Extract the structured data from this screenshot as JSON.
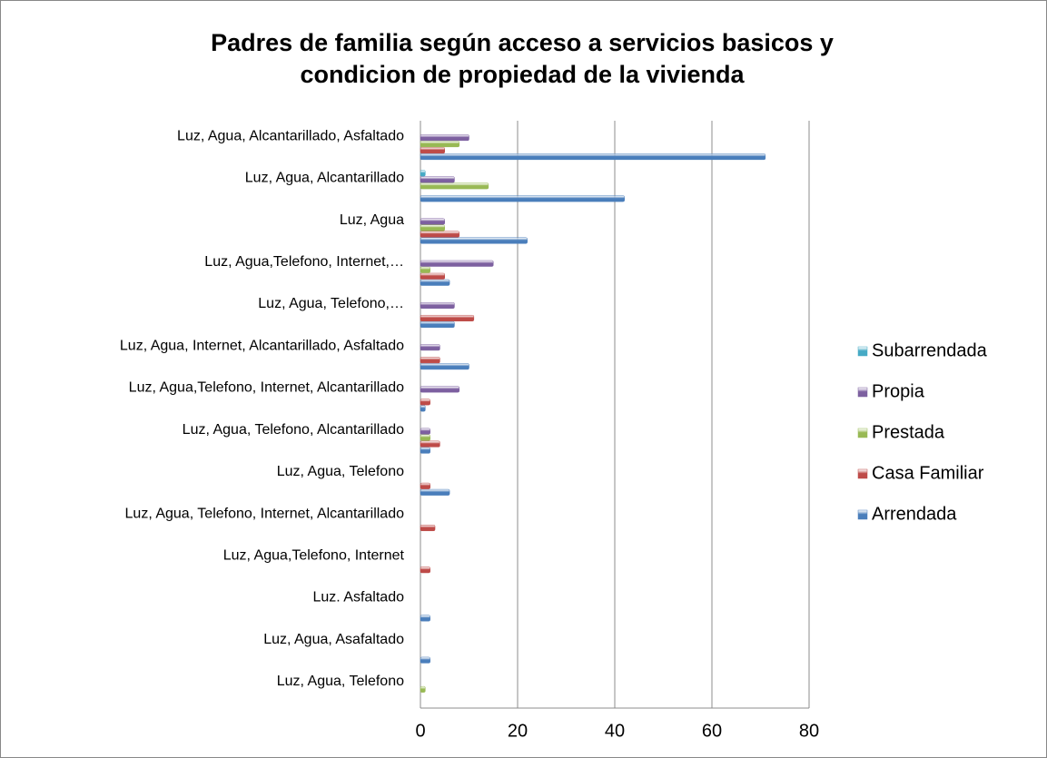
{
  "chart_data": {
    "type": "bar",
    "orientation": "horizontal",
    "title": "Padres de familia según acceso a servicios basicos y condicion de propiedad de la vivienda",
    "categories": [
      "Luz, Agua, Alcantarillado, Asfaltado",
      "Luz, Agua, Alcantarillado",
      "Luz, Agua",
      "Luz, Agua,Telefono, Internet,…",
      "Luz, Agua, Telefono,…",
      "Luz, Agua, Internet, Alcantarillado, Asfaltado",
      "Luz, Agua,Telefono, Internet, Alcantarillado",
      "Luz, Agua, Telefono, Alcantarillado",
      "Luz, Agua, Telefono",
      "Luz, Agua, Telefono, Internet, Alcantarillado",
      "Luz, Agua,Telefono, Internet",
      "Luz. Asfaltado",
      "Luz, Agua, Asafaltado",
      "Luz, Agua, Telefono"
    ],
    "series": [
      {
        "name": "Arrendada",
        "color": "#4a7ebb",
        "values": [
          71,
          42,
          22,
          6,
          7,
          10,
          1,
          2,
          6,
          0,
          0,
          2,
          2,
          0
        ]
      },
      {
        "name": "Casa Familiar",
        "color": "#be4b48",
        "values": [
          5,
          0,
          8,
          5,
          11,
          4,
          2,
          4,
          2,
          3,
          2,
          0,
          0,
          0
        ]
      },
      {
        "name": "Prestada",
        "color": "#98b954",
        "values": [
          8,
          14,
          5,
          2,
          0,
          0,
          0,
          2,
          0,
          0,
          0,
          0,
          0,
          1
        ]
      },
      {
        "name": "Propia",
        "color": "#7d60a0",
        "values": [
          10,
          7,
          5,
          15,
          7,
          4,
          8,
          2,
          0,
          0,
          0,
          0,
          0,
          0
        ]
      },
      {
        "name": "Subarrendada",
        "color": "#46aac5",
        "values": [
          0,
          1,
          0,
          0,
          0,
          0,
          0,
          0,
          0,
          0,
          0,
          0,
          0,
          0
        ]
      }
    ],
    "xlim": [
      0,
      80
    ],
    "xticks": [
      0,
      20,
      40,
      60,
      80
    ],
    "grid": true,
    "legend": "right"
  }
}
